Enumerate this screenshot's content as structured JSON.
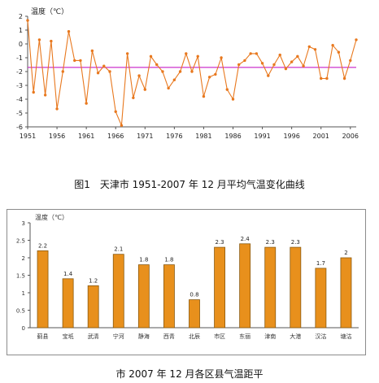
{
  "charts": {
    "top_caption": "图1　天津市 1951-2007 年 12 月平均气温变化曲线",
    "bottom_caption": "市 2007 年 12 月各区县气温距平"
  },
  "chart_data": [
    {
      "type": "line",
      "ylabel": "温度（℃）",
      "xlim": [
        1951,
        2007
      ],
      "ylim": [
        -6,
        2
      ],
      "yticks": [
        2,
        1,
        0,
        -1,
        -2,
        -3,
        -4,
        -5,
        -6
      ],
      "xticks": [
        1951,
        1956,
        1961,
        1966,
        1971,
        1976,
        1981,
        1986,
        1991,
        1996,
        2001,
        2006
      ],
      "grid": false,
      "series": [
        {
          "x": [
            1951,
            1952,
            1953,
            1954,
            1955,
            1956,
            1957,
            1958,
            1959,
            1960,
            1961,
            1962,
            1963,
            1964,
            1965,
            1966,
            1967,
            1968,
            1969,
            1970,
            1971,
            1972,
            1973,
            1974,
            1975,
            1976,
            1977,
            1978,
            1979,
            1980,
            1981,
            1982,
            1983,
            1984,
            1985,
            1986,
            1987,
            1988,
            1989,
            1990,
            1991,
            1992,
            1993,
            1994,
            1995,
            1996,
            1997,
            1998,
            1999,
            2000,
            2001,
            2002,
            2003,
            2004,
            2005,
            2006,
            2007
          ],
          "values": [
            1.7,
            -3.5,
            0.3,
            -3.7,
            0.2,
            -4.7,
            -2.0,
            0.9,
            -1.2,
            -1.2,
            -4.3,
            -0.5,
            -2.1,
            -1.6,
            -2.0,
            -4.9,
            -5.9,
            -0.7,
            -3.9,
            -2.3,
            -3.3,
            -0.9,
            -1.5,
            -2.0,
            -3.2,
            -2.6,
            -2.0,
            -0.7,
            -2.0,
            -0.9,
            -3.8,
            -2.4,
            -2.2,
            -1.0,
            -3.3,
            -4.0,
            -1.5,
            -1.2,
            -0.7,
            -0.7,
            -1.4,
            -2.3,
            -1.5,
            -0.8,
            -1.8,
            -1.3,
            -0.9,
            -1.6,
            -0.2,
            -0.4,
            -2.5,
            -2.5,
            -0.1,
            -0.6,
            -2.5,
            -1.2,
            0.3
          ],
          "color": "#e8781e"
        },
        {
          "name": "",
          "x": [
            1951,
            2007
          ],
          "values": [
            -1.7,
            -1.7
          ],
          "color": "#cc33cc"
        }
      ]
    },
    {
      "type": "bar",
      "ylabel": "温度（℃）",
      "ylim": [
        0,
        3
      ],
      "yticks": [
        0,
        0.5,
        1,
        1.5,
        2,
        2.5,
        3
      ],
      "categories": [
        "蓟县",
        "宝坻",
        "武清",
        "宁河",
        "静海",
        "西青",
        "北辰",
        "市区",
        "东丽",
        "津南",
        "大港",
        "汉沽",
        "塘沽"
      ],
      "values": [
        2.2,
        1.4,
        1.2,
        2.1,
        1.8,
        1.8,
        0.8,
        2.3,
        2.4,
        2.3,
        2.3,
        1.7,
        2.0
      ],
      "data_labels": [
        "2.2",
        "1.4",
        "1.2",
        "2.1",
        "1.8",
        "1.8",
        "0.8",
        "2.3",
        "2.4",
        "2.3",
        "2.3",
        "1.7",
        "2"
      ],
      "grid": false,
      "colors": {
        "bar": "#e8901c",
        "bar_edge": "#8a5a10"
      }
    }
  ]
}
